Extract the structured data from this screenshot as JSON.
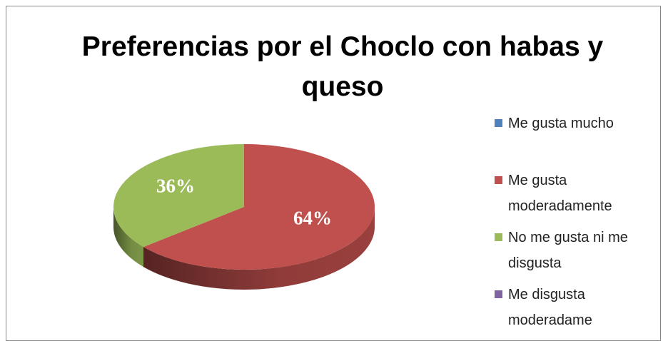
{
  "chart_data": {
    "type": "pie",
    "title": "Preferencias por el Choclo con habas y queso",
    "categories": [
      "Me gusta mucho",
      "Me gusta moderadamente",
      "No me gusta ni me disgusta",
      "Me disgusta moderadame"
    ],
    "values": [
      0,
      64,
      36,
      0
    ],
    "value_labels": [
      null,
      "64%",
      "36%",
      null
    ],
    "colors": [
      "#4f81bd",
      "#c0504d",
      "#9bbb59",
      "#8064a2"
    ],
    "legend": "right"
  }
}
